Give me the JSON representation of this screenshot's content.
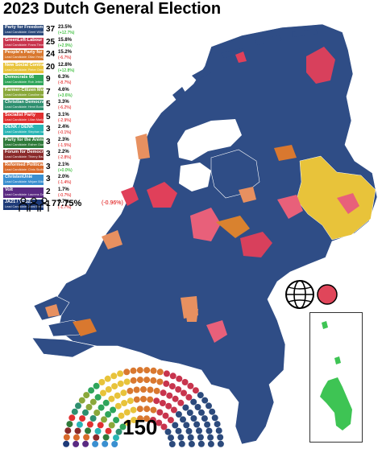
{
  "title": "2023 Dutch General Election",
  "parties": [
    {
      "name": "Party for Freedom",
      "leader": "Lead Candidate: Geert Wilders",
      "seats": "37",
      "pct": "23.5%",
      "change": "(+12.7%)",
      "up": true,
      "color": "#2c4a7c"
    },
    {
      "name": "GreenLeft-Labour",
      "leader": "Lead Candidate: Frans Timmermans",
      "seats": "25",
      "pct": "15.8%",
      "change": "(+2.9%)",
      "up": true,
      "color": "#c8344d"
    },
    {
      "name": "People's Party for Freedom and Democracy",
      "leader": "Lead Candidate: Dilan Yesilgoz",
      "seats": "24",
      "pct": "15.2%",
      "change": "(-6.7%)",
      "up": false,
      "color": "#d9782f"
    },
    {
      "name": "New Social Contract",
      "leader": "Lead Candidate: Pieter Omtzigt",
      "seats": "20",
      "pct": "12.8%",
      "change": "(+12.8%)",
      "up": true,
      "color": "#e8c33a"
    },
    {
      "name": "Democrats 66",
      "leader": "Lead Candidate: Rob Jetten",
      "seats": "9",
      "pct": "6.3%",
      "change": "(-8.7%)",
      "up": false,
      "color": "#2fa55a"
    },
    {
      "name": "Farmer-Citizen Movement",
      "leader": "Lead Candidate: Caroline van der Plas",
      "seats": "7",
      "pct": "4.6%",
      "change": "(+3.6%)",
      "up": true,
      "color": "#8aa83a"
    },
    {
      "name": "Christian Democratic Appeal",
      "leader": "Lead Candidate: Henri Bontenbal",
      "seats": "5",
      "pct": "3.3%",
      "change": "(-6.2%)",
      "up": false,
      "color": "#2e8f6f"
    },
    {
      "name": "Socialist Party",
      "leader": "Lead Candidate: Lilian Marijnissen",
      "seats": "5",
      "pct": "3.1%",
      "change": "(-2.9%)",
      "up": false,
      "color": "#e03030"
    },
    {
      "name": "DENK / DENK",
      "leader": "Lead Candidate: Stephan van Baarle",
      "seats": "3",
      "pct": "2.4%",
      "change": "(-0.1%)",
      "up": false,
      "color": "#29b5b5"
    },
    {
      "name": "Party for the Animals",
      "leader": "Lead Candidate: Esther Ouwehand",
      "seats": "3",
      "pct": "2.3%",
      "change": "(-1.5%)",
      "up": false,
      "color": "#2f7a3a"
    },
    {
      "name": "Forum for Democracy",
      "leader": "Lead Candidate: Thierry Baudet",
      "seats": "3",
      "pct": "2.2%",
      "change": "(-2.8%)",
      "up": false,
      "color": "#8a2a2a"
    },
    {
      "name": "Reformed Political Party",
      "leader": "Lead Candidate: Chris Stoffer",
      "seats": "3",
      "pct": "2.1%",
      "change": "(+0.0%)",
      "up": true,
      "color": "#d96a2a"
    },
    {
      "name": "ChristenUnie",
      "leader": "Lead Candidate: Mirjam Bikker",
      "seats": "3",
      "pct": "2.0%",
      "change": "(-1.4%)",
      "up": false,
      "color": "#3a8fd0"
    },
    {
      "name": "Volt",
      "leader": "Lead Candidate: Laurens Dassen",
      "seats": "2",
      "pct": "1.7%",
      "change": "(-0.7%)",
      "up": false,
      "color": "#5a2a82"
    },
    {
      "name": "JA21 / YES21",
      "leader": "Lead Candidate: Joost Eerdmans",
      "seats": "1",
      "pct": "0.7%",
      "change": "(-1.7%)",
      "up": false,
      "color": "#1e3a78"
    }
  ],
  "turnout": {
    "value": "77.75%",
    "change": "(-0.96%)"
  },
  "total_seats": "150",
  "colors": {
    "background": "#ffffff",
    "pvv": "#2c4a7c",
    "gl_pvda": "#c8344d",
    "vvd": "#d9782f",
    "nsc": "#e8c33a",
    "water": "#ffffff",
    "inset_green": "#3ec454"
  },
  "icons": [
    "people-icon",
    "globe-icon",
    "red-dot-icon"
  ]
}
